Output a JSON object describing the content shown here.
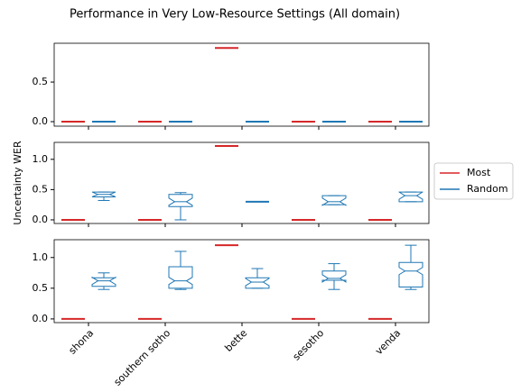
{
  "chart_data": {
    "type": "box",
    "title": "Performance in Very Low-Resource Settings (All domain)",
    "ylabel": "Uncertainty WER",
    "categories": [
      "shona",
      "southern sotho",
      "bette",
      "sesotho",
      "venda"
    ],
    "legend": "right",
    "notch": true,
    "series": [
      {
        "name": "Most",
        "color": "#d62728"
      },
      {
        "name": "Random",
        "color": "#1f77b4"
      }
    ],
    "subplots": [
      {
        "ylim": [
          -0.057,
          0.99
        ],
        "yticks": [
          {
            "value": 0,
            "label": "0.0"
          },
          0.5
        ],
        "series": [
          {
            "values": [
              {
                "low": 0,
                "q1": 0,
                "median": 0,
                "q3": 0,
                "high": 0
              },
              {
                "low": 0,
                "q1": 0,
                "median": 0,
                "q3": 0,
                "high": 0
              },
              {
                "low": 0.93,
                "q1": 0.93,
                "median": 0.93,
                "q3": 0.93,
                "high": 0.93
              },
              {
                "low": 0,
                "q1": 0,
                "median": 0,
                "q3": 0,
                "high": 0
              },
              {
                "low": 0,
                "q1": 0,
                "median": 0,
                "q3": 0,
                "high": 0
              }
            ]
          },
          {
            "values": [
              {
                "low": 0,
                "q1": 0,
                "median": 0,
                "q3": 0,
                "high": 0
              },
              {
                "low": 0,
                "q1": 0,
                "median": 0,
                "q3": 0,
                "high": 0
              },
              {
                "low": 0,
                "q1": 0,
                "median": 0,
                "q3": 0,
                "high": 0
              },
              {
                "low": 0,
                "q1": 0,
                "median": 0,
                "q3": 0,
                "high": 0
              },
              {
                "low": 0,
                "q1": 0,
                "median": 0,
                "q3": 0,
                "high": 0
              }
            ]
          }
        ]
      },
      {
        "ylim": [
          -0.06,
          1.28
        ],
        "yticks": [
          {
            "value": 0,
            "label": "0.0"
          },
          0.5,
          {
            "value": 1,
            "label": "1.0"
          }
        ],
        "series": [
          {
            "values": [
              {
                "low": 0,
                "q1": 0,
                "median": 0,
                "q3": 0,
                "high": 0
              },
              {
                "low": 0,
                "q1": 0,
                "median": 0,
                "q3": 0,
                "high": 0
              },
              {
                "low": 1.22,
                "q1": 1.22,
                "median": 1.22,
                "q3": 1.22,
                "high": 1.22
              },
              {
                "low": 0,
                "q1": 0,
                "median": 0,
                "q3": 0,
                "high": 0
              },
              {
                "low": 0,
                "q1": 0,
                "median": 0,
                "q3": 0,
                "high": 0
              }
            ]
          },
          {
            "values": [
              {
                "low": 0.32,
                "q1": 0.38,
                "median": 0.42,
                "q3": 0.46,
                "high": 0.46
              },
              {
                "low": 0,
                "q1": 0.22,
                "median": 0.3,
                "q3": 0.42,
                "high": 0.45
              },
              {
                "low": 0.3,
                "q1": 0.3,
                "median": 0.3,
                "q3": 0.3,
                "high": 0.3
              },
              {
                "low": 0.25,
                "q1": 0.25,
                "median": 0.3,
                "q3": 0.4,
                "high": 0.4
              },
              {
                "low": 0.3,
                "q1": 0.3,
                "median": 0.4,
                "q3": 0.46,
                "high": 0.46
              }
            ]
          }
        ]
      },
      {
        "ylim": [
          -0.06,
          1.29
        ],
        "yticks": [
          {
            "value": 0,
            "label": "0.0"
          },
          0.5,
          {
            "value": 1,
            "label": "1.0"
          }
        ],
        "series": [
          {
            "values": [
              {
                "low": 0,
                "q1": 0,
                "median": 0,
                "q3": 0,
                "high": 0
              },
              {
                "low": 0,
                "q1": 0,
                "median": 0,
                "q3": 0,
                "high": 0
              },
              {
                "low": 1.2,
                "q1": 1.2,
                "median": 1.2,
                "q3": 1.2,
                "high": 1.2
              },
              {
                "low": 0,
                "q1": 0,
                "median": 0,
                "q3": 0,
                "high": 0
              },
              {
                "low": 0,
                "q1": 0,
                "median": 0,
                "q3": 0,
                "high": 0
              }
            ]
          },
          {
            "values": [
              {
                "low": 0.48,
                "q1": 0.53,
                "median": 0.62,
                "q3": 0.67,
                "high": 0.75
              },
              {
                "low": 0.48,
                "q1": 0.5,
                "median": 0.62,
                "q3": 0.85,
                "high": 1.1
              },
              {
                "low": 0.5,
                "q1": 0.5,
                "median": 0.6,
                "q3": 0.67,
                "high": 0.82
              },
              {
                "low": 0.48,
                "q1": 0.63,
                "median": 0.66,
                "q3": 0.78,
                "high": 0.9
              },
              {
                "low": 0.48,
                "q1": 0.52,
                "median": 0.78,
                "q3": 0.92,
                "high": 1.2
              }
            ]
          }
        ]
      }
    ]
  }
}
